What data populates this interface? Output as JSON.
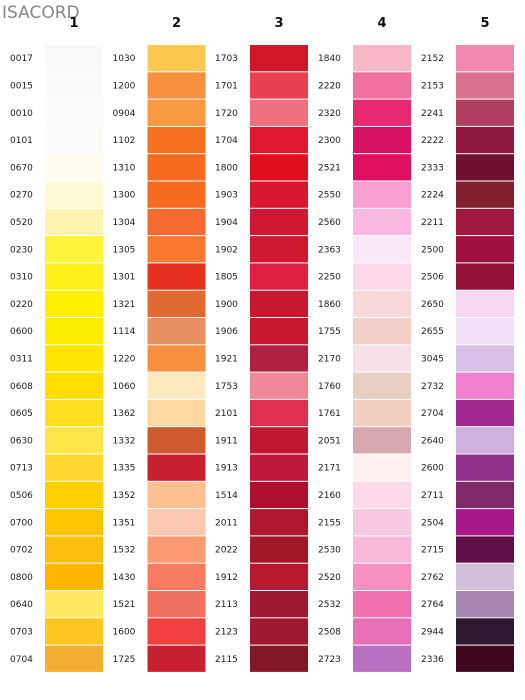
{
  "title": "ISACORD",
  "columns": [
    {
      "header": "1",
      "rows": [
        [
          "0017",
          "#f9f9f9"
        ],
        [
          "0015",
          "#fafafa"
        ],
        [
          "0010",
          "#fbfbfb"
        ],
        [
          "0101",
          "#fcfcfa"
        ],
        [
          "0670",
          "#fdfcee"
        ],
        [
          "0270",
          "#fefad6"
        ],
        [
          "0520",
          "#fdf3ae"
        ],
        [
          "0230",
          "#fff43a"
        ],
        [
          "0310",
          "#ffef1a"
        ],
        [
          "0220",
          "#fff100"
        ],
        [
          "0600",
          "#ffee00"
        ],
        [
          "0311",
          "#ffe600"
        ],
        [
          "0608",
          "#ffde00"
        ],
        [
          "0605",
          "#ffdf20"
        ],
        [
          "0630",
          "#fde54a"
        ],
        [
          "0713",
          "#fdd72a"
        ],
        [
          "0506",
          "#ffd000"
        ],
        [
          "0700",
          "#ffc600"
        ],
        [
          "0702",
          "#ffbe10"
        ],
        [
          "0800",
          "#ffb600"
        ],
        [
          "0640",
          "#ffe760"
        ],
        [
          "0703",
          "#ffc620"
        ],
        [
          "0704",
          "#f4ae30"
        ]
      ]
    },
    {
      "header": "2",
      "rows": [
        [
          "1030",
          "#fdc850"
        ],
        [
          "1200",
          "#f99040"
        ],
        [
          "0904",
          "#f99a40"
        ],
        [
          "1102",
          "#f77020"
        ],
        [
          "1310",
          "#f56a20"
        ],
        [
          "1300",
          "#f56a20"
        ],
        [
          "1304",
          "#f46a30"
        ],
        [
          "1305",
          "#f77a30"
        ],
        [
          "1301",
          "#e83020"
        ],
        [
          "1321",
          "#e06a30"
        ],
        [
          "1114",
          "#e89060"
        ],
        [
          "1220",
          "#f89040"
        ],
        [
          "1060",
          "#fde8c0"
        ],
        [
          "1362",
          "#fdd8a0"
        ],
        [
          "1332",
          "#d05a30"
        ],
        [
          "1335",
          "#c82030"
        ],
        [
          "1352",
          "#fdc090"
        ],
        [
          "1351",
          "#fcc8b0"
        ],
        [
          "1532",
          "#fb9a70"
        ],
        [
          "1430",
          "#f87a60"
        ],
        [
          "1521",
          "#f07060"
        ],
        [
          "1600",
          "#f04040"
        ],
        [
          "1725",
          "#c82030"
        ]
      ]
    },
    {
      "header": "3",
      "rows": [
        [
          "1703",
          "#d01828"
        ],
        [
          "1701",
          "#e84050"
        ],
        [
          "1720",
          "#f07080"
        ],
        [
          "1704",
          "#e01830"
        ],
        [
          "1800",
          "#e01020"
        ],
        [
          "1903",
          "#d81830"
        ],
        [
          "1904",
          "#d01830"
        ],
        [
          "1902",
          "#d01830"
        ],
        [
          "1805",
          "#e02040"
        ],
        [
          "1900",
          "#c81830"
        ],
        [
          "1906",
          "#c81830"
        ],
        [
          "1921",
          "#b02040"
        ],
        [
          "1753",
          "#f08898"
        ],
        [
          "2101",
          "#e03050"
        ],
        [
          "1911",
          "#c01830"
        ],
        [
          "1913",
          "#c01838"
        ],
        [
          "1514",
          "#b01030"
        ],
        [
          "2011",
          "#b01830"
        ],
        [
          "2022",
          "#a01828"
        ],
        [
          "1912",
          "#b81830"
        ],
        [
          "2113",
          "#a01830"
        ],
        [
          "2123",
          "#a01830"
        ],
        [
          "2115",
          "#801828"
        ]
      ]
    },
    {
      "header": "4",
      "rows": [
        [
          "1840",
          "#f8b8c8"
        ],
        [
          "2220",
          "#f070a0"
        ],
        [
          "2320",
          "#e82870"
        ],
        [
          "2300",
          "#d81060"
        ],
        [
          "2521",
          "#e01060"
        ],
        [
          "2550",
          "#f8a0d0"
        ],
        [
          "2560",
          "#f8b8e0"
        ],
        [
          "2363",
          "#f8e8f8"
        ],
        [
          "2250",
          "#fcd8e8"
        ],
        [
          "1860",
          "#f8d8d8"
        ],
        [
          "1755",
          "#f0d0c8"
        ],
        [
          "2170",
          "#f8e0e8"
        ],
        [
          "1760",
          "#e8d0c0"
        ],
        [
          "1761",
          "#f0d0c0"
        ],
        [
          "2051",
          "#d8a8b0"
        ],
        [
          "2171",
          "#fcf0f0"
        ],
        [
          "2160",
          "#fcd8e8"
        ],
        [
          "2155",
          "#f8c8e0"
        ],
        [
          "2530",
          "#f8b8d8"
        ],
        [
          "2520",
          "#f890c0"
        ],
        [
          "2532",
          "#f070b0"
        ],
        [
          "2508",
          "#e870b8"
        ],
        [
          "2723",
          "#b870c0"
        ]
      ]
    },
    {
      "header": "5",
      "rows": [
        [
          "2152",
          "#f088b0"
        ],
        [
          "2153",
          "#d87090"
        ],
        [
          "2241",
          "#b04060"
        ],
        [
          "2222",
          "#901840"
        ],
        [
          "2333",
          "#701030"
        ],
        [
          "2224",
          "#802030"
        ],
        [
          "2211",
          "#a01840"
        ],
        [
          "2500",
          "#a01040"
        ],
        [
          "2506",
          "#901038"
        ],
        [
          "2650",
          "#f8d8f0"
        ],
        [
          "2655",
          "#f0e0f8"
        ],
        [
          "3045",
          "#d8c0e8"
        ],
        [
          "2732",
          "#f080d0"
        ],
        [
          "2704",
          "#a02890"
        ],
        [
          "2640",
          "#d0b0e0"
        ],
        [
          "2600",
          "#903088"
        ],
        [
          "2711",
          "#802868"
        ],
        [
          "2504",
          "#a81888"
        ],
        [
          "2715",
          "#601048"
        ],
        [
          "2762",
          "#d0c0d8"
        ],
        [
          "2764",
          "#a888b0"
        ],
        [
          "2944",
          "#301830"
        ],
        [
          "2336",
          "#400820"
        ]
      ]
    }
  ]
}
